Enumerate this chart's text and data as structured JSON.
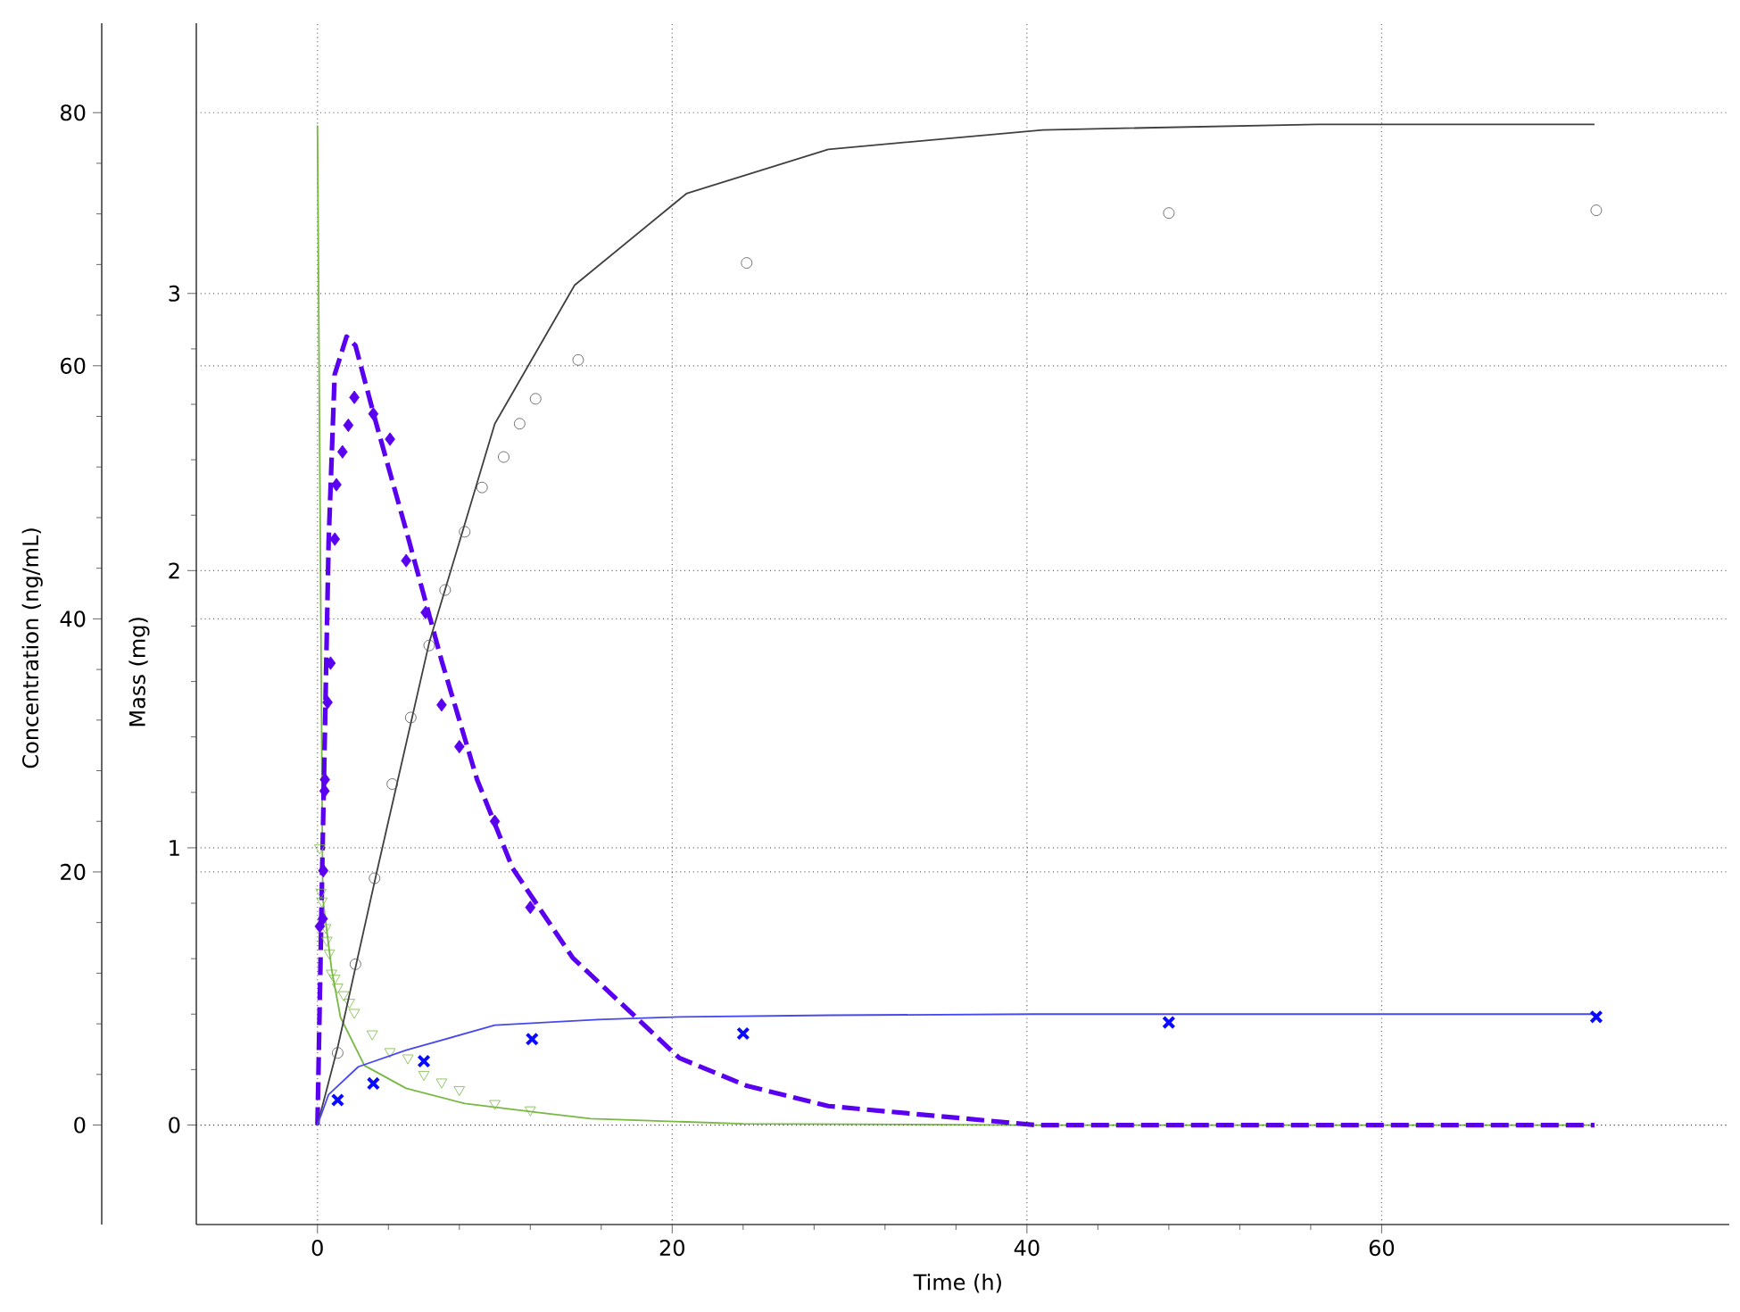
{
  "chart_data": {
    "type": "line",
    "xlabel": "Time (h)",
    "ylabel": "Concentration (ng/mL)",
    "y2label": "Mass (mg)",
    "xlim": [
      -6.83,
      79.6
    ],
    "xticks": [
      0,
      20,
      40,
      60
    ],
    "ylim": [
      -7.86,
      87.07
    ],
    "yticks": [
      0,
      20,
      40,
      60,
      80
    ],
    "y2lim": [
      -0.359,
      3.975
    ],
    "y2ticks": [
      0,
      1,
      2,
      3
    ],
    "grid": true,
    "series": [
      {
        "color": "#404040",
        "axis": "y2",
        "marker": "none",
        "line_style": "solid",
        "x": [
          0,
          1.14,
          3.3,
          6.3,
          10,
          14.5,
          20.8,
          28.8,
          40.9,
          56.4,
          72
        ],
        "values": [
          0,
          0.28,
          0.9,
          1.74,
          2.53,
          3.03,
          3.36,
          3.52,
          3.59,
          3.61,
          3.61
        ]
      },
      {
        "type": "scatter",
        "color": "#505050",
        "axis": "y2",
        "marker": "circle",
        "x": [
          1.14,
          2.14,
          3.22,
          4.22,
          5.26,
          6.3,
          7.2,
          8.3,
          9.28,
          10.5,
          11.4,
          12.3,
          14.7,
          24.2,
          48,
          72.1
        ],
        "values": [
          0.26,
          0.58,
          0.89,
          1.23,
          1.47,
          1.73,
          1.93,
          2.14,
          2.3,
          2.41,
          2.53,
          2.62,
          2.76,
          3.11,
          3.29,
          3.3
        ]
      },
      {
        "color": "#4848f0",
        "axis": "y2",
        "marker": "none",
        "line_style": "solid",
        "x": [
          0,
          0.63,
          2.3,
          5,
          10,
          15.8,
          18.4,
          20.4,
          28.9,
          40.5,
          72.1
        ],
        "values": [
          0,
          0.11,
          0.21,
          0.27,
          0.36,
          0.38,
          0.386,
          0.39,
          0.396,
          0.4,
          0.4
        ]
      },
      {
        "type": "scatter",
        "color": "#0a0aff",
        "axis": "y2",
        "marker": "cross",
        "x": [
          1.14,
          3.15,
          6,
          12.1,
          24,
          48,
          72.1
        ],
        "values": [
          0.09,
          0.15,
          0.23,
          0.31,
          0.33,
          0.37,
          0.39
        ]
      },
      {
        "color": "#78b843",
        "marker": "none",
        "line_style": "solid",
        "x": [
          0,
          0.3,
          0.8,
          1.3,
          2.65,
          5,
          8.3,
          12.4,
          15.4,
          24,
          40,
          72
        ],
        "values": [
          79,
          17.9,
          12.3,
          8.5,
          4.7,
          2.9,
          1.7,
          1,
          0.5,
          0.1,
          0,
          0
        ]
      },
      {
        "type": "scatter",
        "color": "#78b843",
        "marker": "triangle",
        "x": [
          0.13,
          0.2,
          0.25,
          0.47,
          0.53,
          0.67,
          0.8,
          0.97,
          1.14,
          1.47,
          1.8,
          2.08,
          3.09,
          4.09,
          5.1,
          6,
          7,
          8,
          10,
          12
        ],
        "values": [
          21.9,
          18.4,
          17.7,
          15.6,
          14.6,
          13.6,
          12,
          11.6,
          10.9,
          10.3,
          9.7,
          8.9,
          7.2,
          5.8,
          5.3,
          4,
          3.4,
          2.8,
          1.7,
          1.2
        ]
      },
      {
        "color": "#5a00f0",
        "marker": "none",
        "line_style": "dashed",
        "x": [
          0,
          0.3,
          0.63,
          0.97,
          1.64,
          2.14,
          3.3,
          5,
          7,
          9,
          11,
          14.4,
          20.4,
          24.2,
          28.8,
          40.5,
          72
        ],
        "values": [
          0,
          22.6,
          46.1,
          59.3,
          62.3,
          61.6,
          55.5,
          47,
          36.7,
          27.3,
          20.3,
          13.2,
          5.3,
          3.1,
          1.5,
          0,
          0
        ]
      },
      {
        "type": "scatter",
        "color": "#5a00f0",
        "marker": "diamond",
        "x": [
          0.13,
          0.3,
          0.33,
          0.4,
          0.42,
          0.57,
          0.74,
          0.98,
          1.07,
          1.41,
          1.74,
          2.08,
          3.15,
          4.09,
          5,
          6.1,
          7,
          8,
          10,
          12
        ],
        "values": [
          15.7,
          16.3,
          20.1,
          26.4,
          27.3,
          33.4,
          36.5,
          46.3,
          50.6,
          53.2,
          55.3,
          57.5,
          56.2,
          54.2,
          44.6,
          40.5,
          33.2,
          29.9,
          24,
          17.2
        ]
      }
    ]
  }
}
